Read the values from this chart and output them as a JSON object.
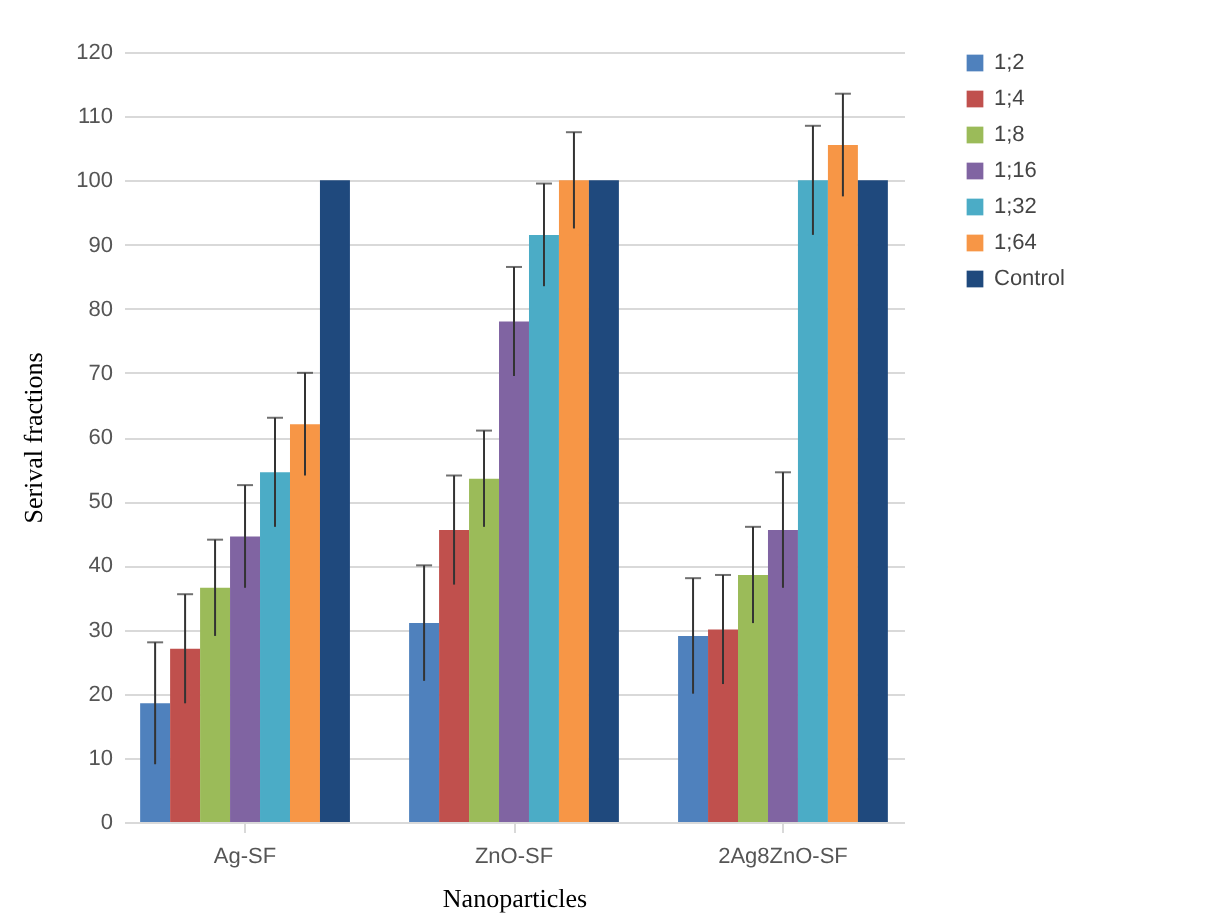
{
  "chart_data": {
    "type": "bar",
    "xlabel": "Nanoparticles",
    "ylabel": "Serival fractions",
    "categories": [
      "Ag-SF",
      "ZnO-SF",
      "2Ag8ZnO-SF"
    ],
    "series": [
      {
        "name": "1;2",
        "color": "#4f81bd",
        "values": [
          18.5,
          31,
          29
        ],
        "errors": [
          9.5,
          9,
          9
        ]
      },
      {
        "name": "1;4",
        "color": "#c0504d",
        "values": [
          27,
          45.5,
          30
        ],
        "errors": [
          8.5,
          8.5,
          8.5
        ]
      },
      {
        "name": "1;8",
        "color": "#9bbb59",
        "values": [
          36.5,
          53.5,
          38.5
        ],
        "errors": [
          7.5,
          7.5,
          7.5
        ]
      },
      {
        "name": "1;16",
        "color": "#8064a2",
        "values": [
          44.5,
          78,
          45.5
        ],
        "errors": [
          8,
          8.5,
          9
        ]
      },
      {
        "name": "1;32",
        "color": "#4bacc6",
        "values": [
          54.5,
          91.5,
          100
        ],
        "errors": [
          8.5,
          8,
          8.5
        ]
      },
      {
        "name": "1;64",
        "color": "#f79646",
        "values": [
          62,
          100,
          105.5
        ],
        "errors": [
          8,
          7.5,
          8
        ]
      },
      {
        "name": "Control",
        "color": "#1f497d",
        "values": [
          100,
          100,
          100
        ]
      }
    ],
    "ylim": [
      0,
      120
    ],
    "yticks": [
      0,
      10,
      20,
      30,
      40,
      50,
      60,
      70,
      80,
      90,
      100,
      110,
      120
    ],
    "grid": "y",
    "legend": "right"
  }
}
